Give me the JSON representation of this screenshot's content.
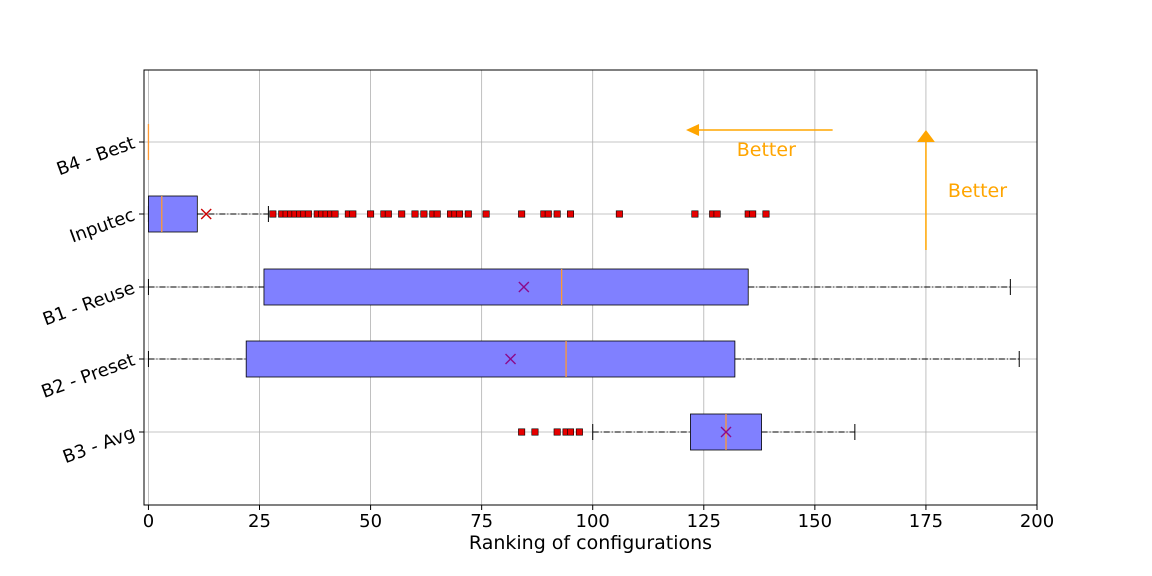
{
  "chart_data": {
    "type": "boxplot",
    "orientation": "horizontal",
    "title": "",
    "xlabel": "Ranking of configurations",
    "ylabel": "",
    "xlim": [
      -1,
      200
    ],
    "x_ticks": [
      0,
      25,
      50,
      75,
      100,
      125,
      150,
      175,
      200
    ],
    "grid": true,
    "box_color": "#8080ff",
    "median_color": "#ff9933",
    "mean_marker_color": "#8b0a8b",
    "outlier_color": "#e60000",
    "annotation_color": "#ffa500",
    "categories": [
      {
        "name": "B4 - Best",
        "whisker_low": 0,
        "q1": 0,
        "median": 0,
        "q3": 0,
        "whisker_high": 0,
        "mean": null,
        "outliers": []
      },
      {
        "name": "Inputec",
        "whisker_low": 0,
        "q1": 0,
        "median": 3,
        "q3": 11,
        "whisker_high": 27,
        "mean": 13,
        "outliers": [
          28,
          30,
          31,
          32,
          33,
          34,
          35,
          36,
          38,
          39,
          40,
          41,
          42,
          45,
          46,
          50,
          53,
          54,
          57,
          60,
          62,
          64,
          65,
          68,
          69,
          70,
          72,
          76,
          84,
          89,
          90,
          92,
          95,
          106,
          123,
          127,
          128,
          135,
          136,
          139
        ]
      },
      {
        "name": "B1 - Reuse",
        "whisker_low": 0,
        "q1": 26,
        "median": 93,
        "q3": 135,
        "whisker_high": 194,
        "mean": 84.5,
        "outliers": []
      },
      {
        "name": "B2 - Preset",
        "whisker_low": 0,
        "q1": 22,
        "median": 94,
        "q3": 132,
        "whisker_high": 196,
        "mean": 81.5,
        "outliers": []
      },
      {
        "name": "B3 - Avg",
        "whisker_low": 100,
        "q1": 122,
        "median": 130,
        "q3": 138,
        "whisker_high": 159,
        "mean": 130,
        "outliers": [
          84,
          87,
          92,
          94,
          95,
          97
        ]
      }
    ],
    "annotations": [
      {
        "text": "Better",
        "direction": "left",
        "arrow_from_x": 154,
        "arrow_to_x": 121,
        "row": "B4 - Best"
      },
      {
        "text": "Better",
        "direction": "up",
        "arrow_x": 175,
        "from_row": "Inputec",
        "to_row": "B4 - Best"
      }
    ]
  }
}
